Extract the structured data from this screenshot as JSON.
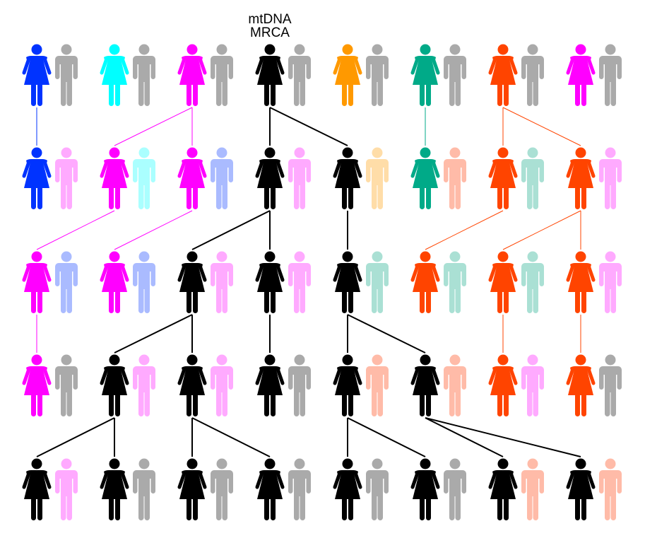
{
  "label": {
    "line1": "mtDNA",
    "line2": "MRCA"
  },
  "colors": {
    "blue": "#0033ff",
    "cyan": "#00ffff",
    "magenta": "#ff00ff",
    "black": "#000000",
    "orange": "#ff9900",
    "teal": "#00aa88",
    "orangered": "#ff4400",
    "gray": "#aaaaaa",
    "pink": "#ffaaff",
    "lightcyan": "#aaffff",
    "lightblue": "#aabbff",
    "lightorange": "#ffdda8",
    "salmon": "#ffbba8",
    "lightteal": "#aae0d4"
  },
  "generations": [
    [
      [
        "blue",
        "gray"
      ],
      [
        "cyan",
        "gray"
      ],
      [
        "magenta",
        "gray"
      ],
      [
        "black",
        "gray"
      ],
      [
        "orange",
        "gray"
      ],
      [
        "teal",
        "gray"
      ],
      [
        "orangered",
        "gray"
      ],
      [
        "magenta",
        "gray"
      ]
    ],
    [
      [
        "blue",
        "pink"
      ],
      [
        "magenta",
        "lightcyan"
      ],
      [
        "magenta",
        "lightblue"
      ],
      [
        "black",
        "pink"
      ],
      [
        "black",
        "lightorange"
      ],
      [
        "teal",
        "salmon"
      ],
      [
        "orangered",
        "lightteal"
      ],
      [
        "orangered",
        "pink"
      ]
    ],
    [
      [
        "magenta",
        "lightblue"
      ],
      [
        "magenta",
        "lightblue"
      ],
      [
        "black",
        "pink"
      ],
      [
        "black",
        "pink"
      ],
      [
        "black",
        "lightteal"
      ],
      [
        "orangered",
        "lightteal"
      ],
      [
        "orangered",
        "lightteal"
      ],
      [
        "orangered",
        "pink"
      ]
    ],
    [
      [
        "magenta",
        "gray"
      ],
      [
        "black",
        "pink"
      ],
      [
        "black",
        "pink"
      ],
      [
        "black",
        "gray"
      ],
      [
        "black",
        "salmon"
      ],
      [
        "black",
        "salmon"
      ],
      [
        "orangered",
        "pink"
      ],
      [
        "orangered",
        "gray"
      ]
    ],
    [
      [
        "black",
        "pink"
      ],
      [
        "black",
        "gray"
      ],
      [
        "black",
        "gray"
      ],
      [
        "black",
        "gray"
      ],
      [
        "black",
        "gray"
      ],
      [
        "black",
        "gray"
      ],
      [
        "black",
        "salmon"
      ],
      [
        "black",
        "salmon"
      ]
    ]
  ],
  "mother_links": [
    [
      [
        0,
        0
      ],
      [
        2,
        1
      ],
      [
        2,
        2
      ],
      [
        3,
        3
      ],
      [
        3,
        4
      ],
      [
        5,
        5
      ],
      [
        6,
        6
      ],
      [
        6,
        7
      ]
    ],
    [
      [
        1,
        0
      ],
      [
        2,
        1
      ],
      [
        3,
        2
      ],
      [
        3,
        3
      ],
      [
        4,
        4
      ],
      [
        6,
        5
      ],
      [
        7,
        6
      ],
      [
        7,
        7
      ]
    ],
    [
      [
        0,
        0
      ],
      [
        2,
        1
      ],
      [
        2,
        2
      ],
      [
        3,
        3
      ],
      [
        4,
        4
      ],
      [
        4,
        5
      ],
      [
        6,
        6
      ],
      [
        7,
        7
      ]
    ],
    [
      [
        1,
        0
      ],
      [
        1,
        1
      ],
      [
        2,
        2
      ],
      [
        2,
        3
      ],
      [
        4,
        4
      ],
      [
        4,
        5
      ],
      [
        5,
        6
      ],
      [
        5,
        7
      ]
    ]
  ]
}
